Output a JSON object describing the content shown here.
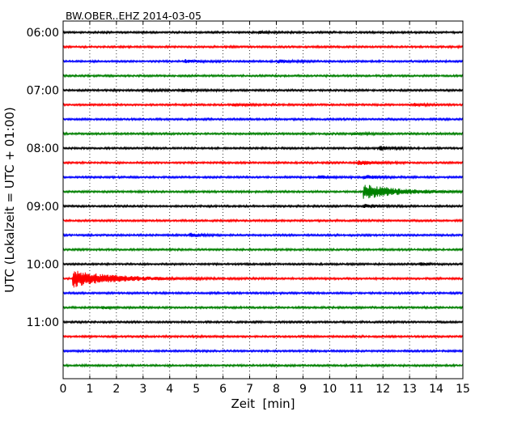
{
  "chart_data": {
    "type": "line",
    "title": "BW.OBER..EHZ 2014-03-05",
    "xlabel": "Zeit  [min]",
    "ylabel": "UTC (Lokalzeit = UTC + 01:00)",
    "xlim": [
      0,
      15
    ],
    "x_ticks": [
      "0",
      "1",
      "2",
      "3",
      "4",
      "5",
      "6",
      "7",
      "8",
      "9",
      "10",
      "11",
      "12",
      "13",
      "14",
      "15"
    ],
    "y_tick_labels": [
      "06:00",
      "07:00",
      "08:00",
      "09:00",
      "10:00",
      "11:00"
    ],
    "grid": true,
    "trace_interval_min": 15,
    "first_trace_time": "06:00",
    "colors": [
      "#000000",
      "#ff0000",
      "#0000ff",
      "#008000"
    ],
    "traces": [
      {
        "start": "06:00",
        "color": "#000000",
        "events": [
          {
            "t": 7.4,
            "amp": 1.2
          }
        ]
      },
      {
        "start": "06:15",
        "color": "#ff0000",
        "events": []
      },
      {
        "start": "06:30",
        "color": "#0000ff",
        "events": [
          {
            "t": 4.6,
            "amp": 1.5
          },
          {
            "t": 8.1,
            "amp": 1.5
          }
        ]
      },
      {
        "start": "06:45",
        "color": "#008000",
        "events": []
      },
      {
        "start": "07:00",
        "color": "#000000",
        "events": [
          {
            "t": 3.0,
            "amp": 1.2
          },
          {
            "t": 4.5,
            "amp": 1.2
          }
        ]
      },
      {
        "start": "07:15",
        "color": "#ff0000",
        "events": [
          {
            "t": 6.4,
            "amp": 1.5
          },
          {
            "t": 13.2,
            "amp": 1.2
          }
        ]
      },
      {
        "start": "07:30",
        "color": "#0000ff",
        "events": []
      },
      {
        "start": "07:45",
        "color": "#008000",
        "events": [
          {
            "t": 10.9,
            "amp": 1.5
          }
        ]
      },
      {
        "start": "08:00",
        "color": "#000000",
        "events": [
          {
            "t": 11.9,
            "amp": 2.2
          }
        ]
      },
      {
        "start": "08:15",
        "color": "#ff0000",
        "events": [
          {
            "t": 11.1,
            "amp": 2.6
          }
        ]
      },
      {
        "start": "08:30",
        "color": "#0000ff",
        "events": [
          {
            "t": 9.6,
            "amp": 1.8
          },
          {
            "t": 11.3,
            "amp": 2.2
          }
        ]
      },
      {
        "start": "08:45",
        "color": "#008000",
        "events": [
          {
            "t": 11.3,
            "amp": 8.5
          }
        ]
      },
      {
        "start": "09:00",
        "color": "#000000",
        "events": [
          {
            "t": 11.3,
            "amp": 2.0
          }
        ]
      },
      {
        "start": "09:15",
        "color": "#ff0000",
        "events": []
      },
      {
        "start": "09:30",
        "color": "#0000ff",
        "events": [
          {
            "t": 4.8,
            "amp": 1.8
          }
        ]
      },
      {
        "start": "09:45",
        "color": "#008000",
        "events": []
      },
      {
        "start": "10:00",
        "color": "#000000",
        "events": [
          {
            "t": 13.4,
            "amp": 1.2
          }
        ]
      },
      {
        "start": "10:15",
        "color": "#ff0000",
        "events": [
          {
            "t": 0.4,
            "amp": 10.0
          }
        ]
      },
      {
        "start": "10:30",
        "color": "#0000ff",
        "events": []
      },
      {
        "start": "10:45",
        "color": "#008000",
        "events": [
          {
            "t": 1.5,
            "amp": 1.2
          }
        ]
      },
      {
        "start": "11:00",
        "color": "#000000",
        "events": []
      },
      {
        "start": "11:15",
        "color": "#ff0000",
        "events": []
      },
      {
        "start": "11:30",
        "color": "#0000ff",
        "events": []
      },
      {
        "start": "11:45",
        "color": "#008000",
        "events": []
      }
    ]
  }
}
